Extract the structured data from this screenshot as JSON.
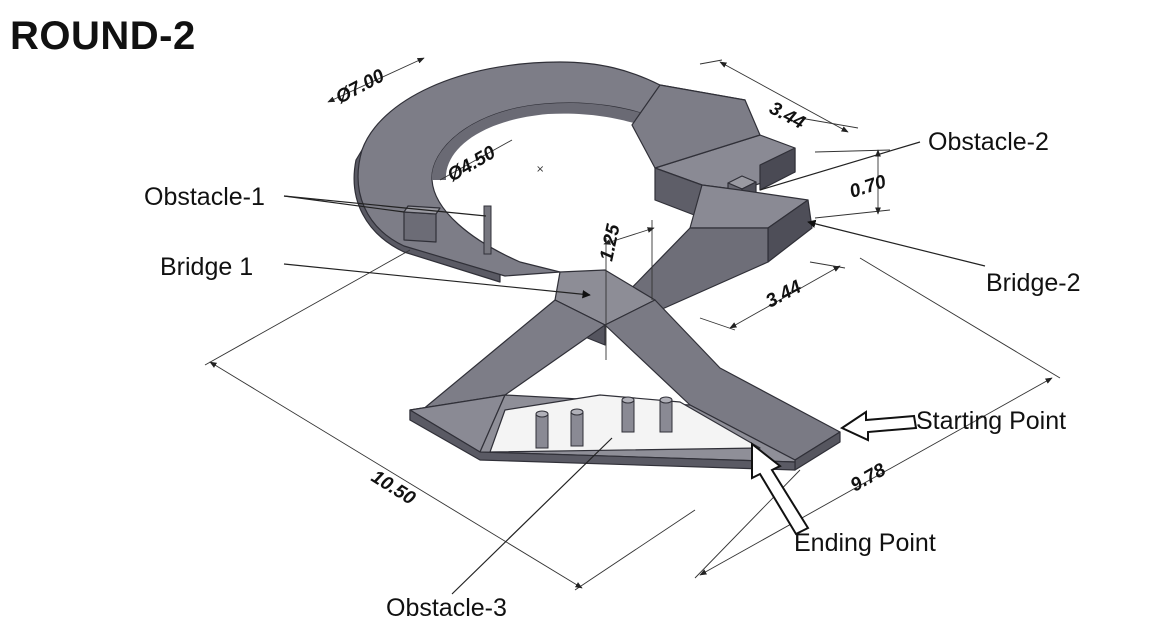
{
  "title": "ROUND-2",
  "labels": {
    "obstacle1": "Obstacle-1",
    "obstacle2": "Obstacle-2",
    "obstacle3": "Obstacle-3",
    "bridge1": "Bridge 1",
    "bridge2": "Bridge-2",
    "starting_point": "Starting Point",
    "ending_point": "Ending Point"
  },
  "dimensions": {
    "outer_diameter": "Ø7.00",
    "inner_diameter": "Ø4.50",
    "top_width": "3.44",
    "right_width": "3.44",
    "step_height": "0.70",
    "bridge_height": "1.25",
    "total_length": "10.50",
    "total_width": "9.78"
  },
  "colors": {
    "track_top": "#7d7d87",
    "track_side": "#5a5a64",
    "track_dark": "#4a4a54",
    "background": "#ffffff"
  }
}
